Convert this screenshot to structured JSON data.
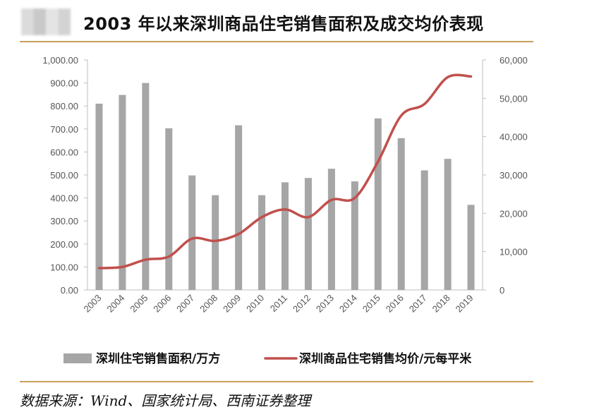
{
  "header": {
    "title": "2003 年以来深圳商品住宅销售面积及成交均价表现"
  },
  "footer": {
    "source": "数据来源：Wind、国家统计局、西南证券整理"
  },
  "colors": {
    "bar": "#a6a6a6",
    "line": "#c0504d",
    "accent_rule": "#c8a15a"
  },
  "chart_data": {
    "type": "bar",
    "title": "2003 年以来深圳商品住宅销售面积及成交均价表现",
    "categories": [
      "2003",
      "2004",
      "2005",
      "2006",
      "2007",
      "2008",
      "2009",
      "2010",
      "2011",
      "2012",
      "2013",
      "2014",
      "2015",
      "2016",
      "2017",
      "2018",
      "2019"
    ],
    "series": [
      {
        "name": "深圳住宅销售面积/万方",
        "type": "bar",
        "axis": "left",
        "values": [
          810,
          848,
          900,
          703,
          498,
          412,
          716,
          412,
          468,
          487,
          527,
          472,
          746,
          660,
          520,
          570,
          370
        ]
      },
      {
        "name": "深圳商品住宅销售均价/元每平米",
        "type": "line",
        "axis": "right",
        "values": [
          5700,
          6000,
          7900,
          8700,
          13400,
          12800,
          14600,
          19000,
          21000,
          19000,
          23500,
          24000,
          33500,
          45500,
          48500,
          55500,
          55700
        ]
      }
    ],
    "y_left": {
      "ylim": [
        0,
        1000
      ],
      "ticks": [
        "0.00",
        "100.00",
        "200.00",
        "300.00",
        "400.00",
        "500.00",
        "600.00",
        "700.00",
        "800.00",
        "900.00",
        "1,000.00"
      ]
    },
    "y_right": {
      "ylim": [
        0,
        60000
      ],
      "ticks": [
        "0",
        "10,000",
        "20,000",
        "30,000",
        "40,000",
        "50,000",
        "60,000"
      ]
    },
    "legend_position": "bottom",
    "grid": false
  }
}
